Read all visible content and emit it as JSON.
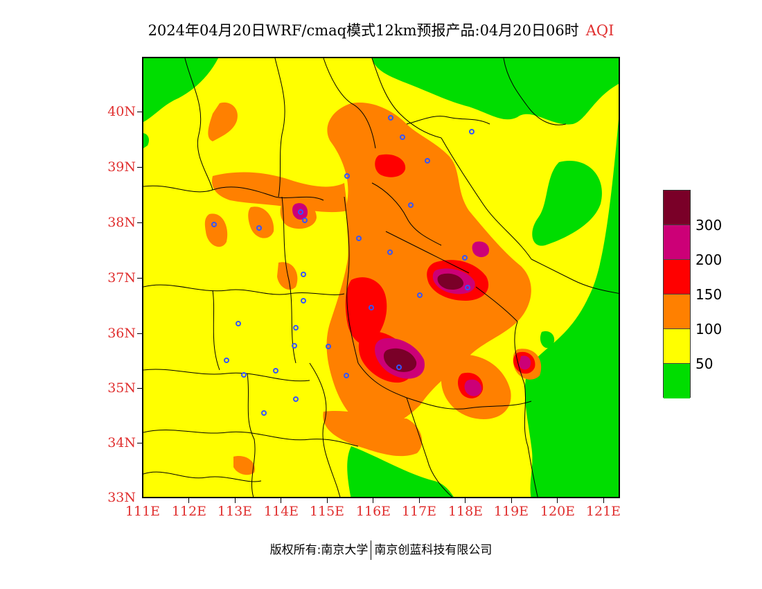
{
  "title": {
    "main": "2024年04月20日WRF/cmaq模式12km预报产品:04月20日06时",
    "product": "AQI"
  },
  "axes": {
    "lat_labels": [
      "40N",
      "39N",
      "38N",
      "37N",
      "36N",
      "35N",
      "34N",
      "33N"
    ],
    "lon_labels": [
      "111E",
      "112E",
      "113E",
      "114E",
      "115E",
      "116E",
      "117E",
      "118E",
      "119E",
      "120E",
      "121E"
    ]
  },
  "legend": {
    "labels": [
      "300",
      "200",
      "150",
      "100",
      "50"
    ],
    "colors": [
      "#7a0028",
      "#cc0077",
      "#ff0000",
      "#ff8000",
      "#ffff00",
      "#00dd00"
    ]
  },
  "colors": {
    "good": "#00dd00",
    "moderate": "#ffff00",
    "sensitive": "#ff8000",
    "unhealthy": "#ff0000",
    "very_unhealthy": "#cc0077",
    "hazardous": "#7a0028",
    "label_red": "#e03030",
    "station_marker": "#3355ff"
  },
  "footer": {
    "left": "版权所有:南京大学",
    "right": "南京创蓝科技有限公司"
  }
}
